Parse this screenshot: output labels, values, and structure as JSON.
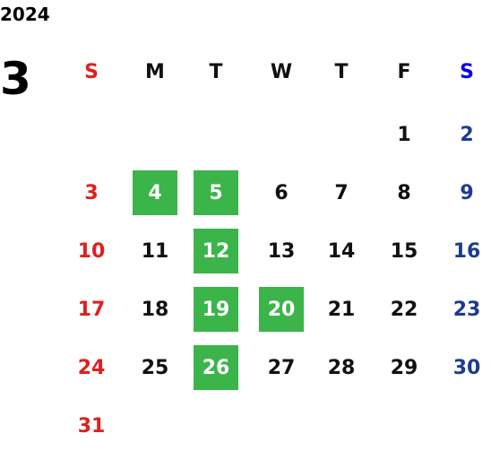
{
  "year": "2024",
  "month": "3",
  "weekdays": [
    "S",
    "M",
    "T",
    "W",
    "T",
    "F",
    "S"
  ],
  "weeks": [
    [
      null,
      null,
      null,
      null,
      null,
      1,
      2
    ],
    [
      3,
      4,
      5,
      6,
      7,
      8,
      9
    ],
    [
      10,
      11,
      12,
      13,
      14,
      15,
      16
    ],
    [
      17,
      18,
      19,
      20,
      21,
      22,
      23
    ],
    [
      24,
      25,
      26,
      27,
      28,
      29,
      30
    ],
    [
      31,
      null,
      null,
      null,
      null,
      null,
      null
    ]
  ],
  "highlighted": [
    4,
    5,
    12,
    19,
    20,
    26
  ],
  "colors": {
    "sunday": "#e0201e",
    "saturday": "#1e3c8c",
    "saturday_header": "#0000e6",
    "weekday": "#111111",
    "highlight": "#3bb54a",
    "highlight_text": "#ffffff"
  }
}
